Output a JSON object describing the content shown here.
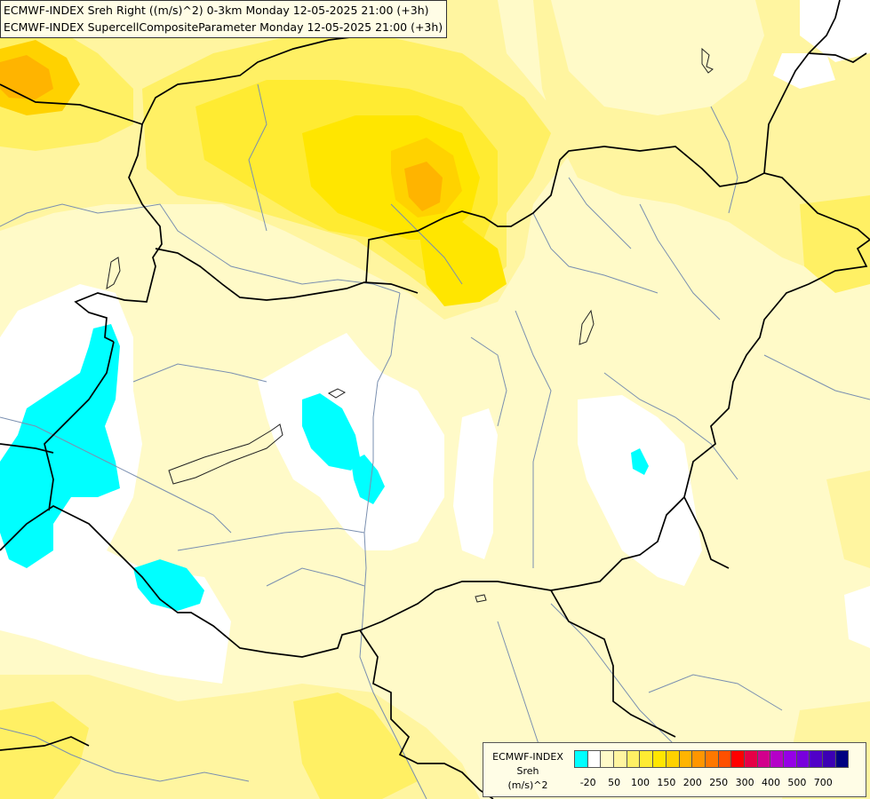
{
  "header": {
    "line1": "ECMWF-INDEX Sreh Right ((m/s)^2) 0-3km Monday 12-05-2025 21:00 (+3h)",
    "line2": "ECMWF-INDEX SupercellCompositeParameter Monday 12-05-2025 21:00 (+3h)"
  },
  "legend": {
    "title_line1": "ECMWF-INDEX",
    "title_line2": "Sreh",
    "title_line3": "(m/s)^2",
    "colors": [
      "#00ffff",
      "#ffffff",
      "#fffac8",
      "#fff5a0",
      "#fff064",
      "#ffeb32",
      "#ffe600",
      "#ffd200",
      "#ffb400",
      "#ff9600",
      "#ff7800",
      "#ff5000",
      "#ff0000",
      "#e60046",
      "#d2008c",
      "#b400c8",
      "#9600e6",
      "#7800dc",
      "#5000c8",
      "#3c00b4",
      "#000082"
    ],
    "ticks": [
      {
        "label": "-20",
        "index": 1
      },
      {
        "label": "50",
        "index": 3
      },
      {
        "label": "100",
        "index": 5
      },
      {
        "label": "150",
        "index": 7
      },
      {
        "label": "200",
        "index": 9
      },
      {
        "label": "250",
        "index": 11
      },
      {
        "label": "300",
        "index": 13
      },
      {
        "label": "400",
        "index": 15
      },
      {
        "label": "500",
        "index": 17
      },
      {
        "label": "700",
        "index": 19
      }
    ]
  }
}
